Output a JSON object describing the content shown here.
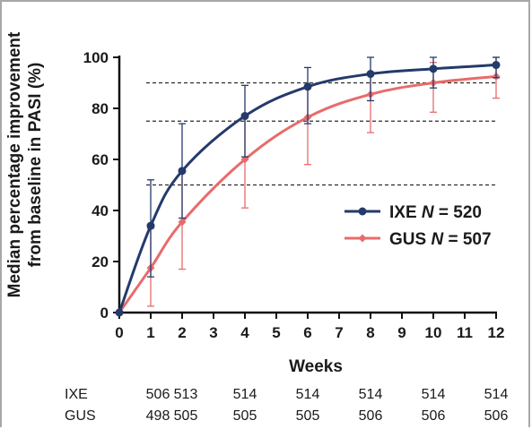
{
  "chart_data": {
    "type": "line",
    "ylabel_line1": "Median percentage improvement",
    "ylabel_line2": "from baseline in PASI (%)",
    "xlabel": "Weeks",
    "ylim": [
      0,
      100
    ],
    "xlim": [
      0,
      12
    ],
    "x_ticks": [
      0,
      1,
      2,
      3,
      4,
      5,
      6,
      7,
      8,
      9,
      10,
      11,
      12
    ],
    "y_ticks": [
      0,
      20,
      40,
      60,
      80,
      100
    ],
    "reference_lines": [
      50,
      75,
      90
    ],
    "legend_position": "right",
    "series": [
      {
        "name": "IXE",
        "legend_prefix": "IXE ",
        "legend_n_symbol": "N",
        "legend_suffix": " = 520",
        "color": "#243a6b",
        "marker": "circle",
        "x": [
          0,
          1,
          2,
          4,
          6,
          8,
          10,
          12
        ],
        "y": [
          0,
          34,
          55.5,
          77,
          88.5,
          93.5,
          95.5,
          97
        ],
        "err_low": [
          0,
          14,
          37,
          61,
          74,
          83,
          88,
          92
        ],
        "err_high": [
          0,
          52,
          74,
          89,
          96,
          100,
          100,
          100
        ]
      },
      {
        "name": "GUS",
        "legend_prefix": "GUS ",
        "legend_n_symbol": "N",
        "legend_suffix": " = 507",
        "color": "#e86b6b",
        "marker": "diamond",
        "x": [
          0,
          1,
          2,
          4,
          6,
          8,
          10,
          12
        ],
        "y": [
          0,
          17.5,
          35.5,
          60,
          76.5,
          85.5,
          90,
          92.5
        ],
        "err_low": [
          0,
          2.5,
          17,
          41,
          58,
          70.5,
          78.5,
          84
        ],
        "err_high": [
          0,
          33,
          56,
          77,
          88,
          94,
          98,
          100
        ]
      }
    ],
    "number_at_risk": {
      "rows": [
        {
          "label": "IXE",
          "values": [
            "506",
            "513",
            "514",
            "514",
            "514",
            "514",
            "514"
          ]
        },
        {
          "label": "GUS",
          "values": [
            "498",
            "505",
            "505",
            "505",
            "506",
            "506",
            "506"
          ]
        }
      ],
      "weeks": [
        1,
        2,
        4,
        6,
        8,
        10,
        12
      ]
    }
  }
}
